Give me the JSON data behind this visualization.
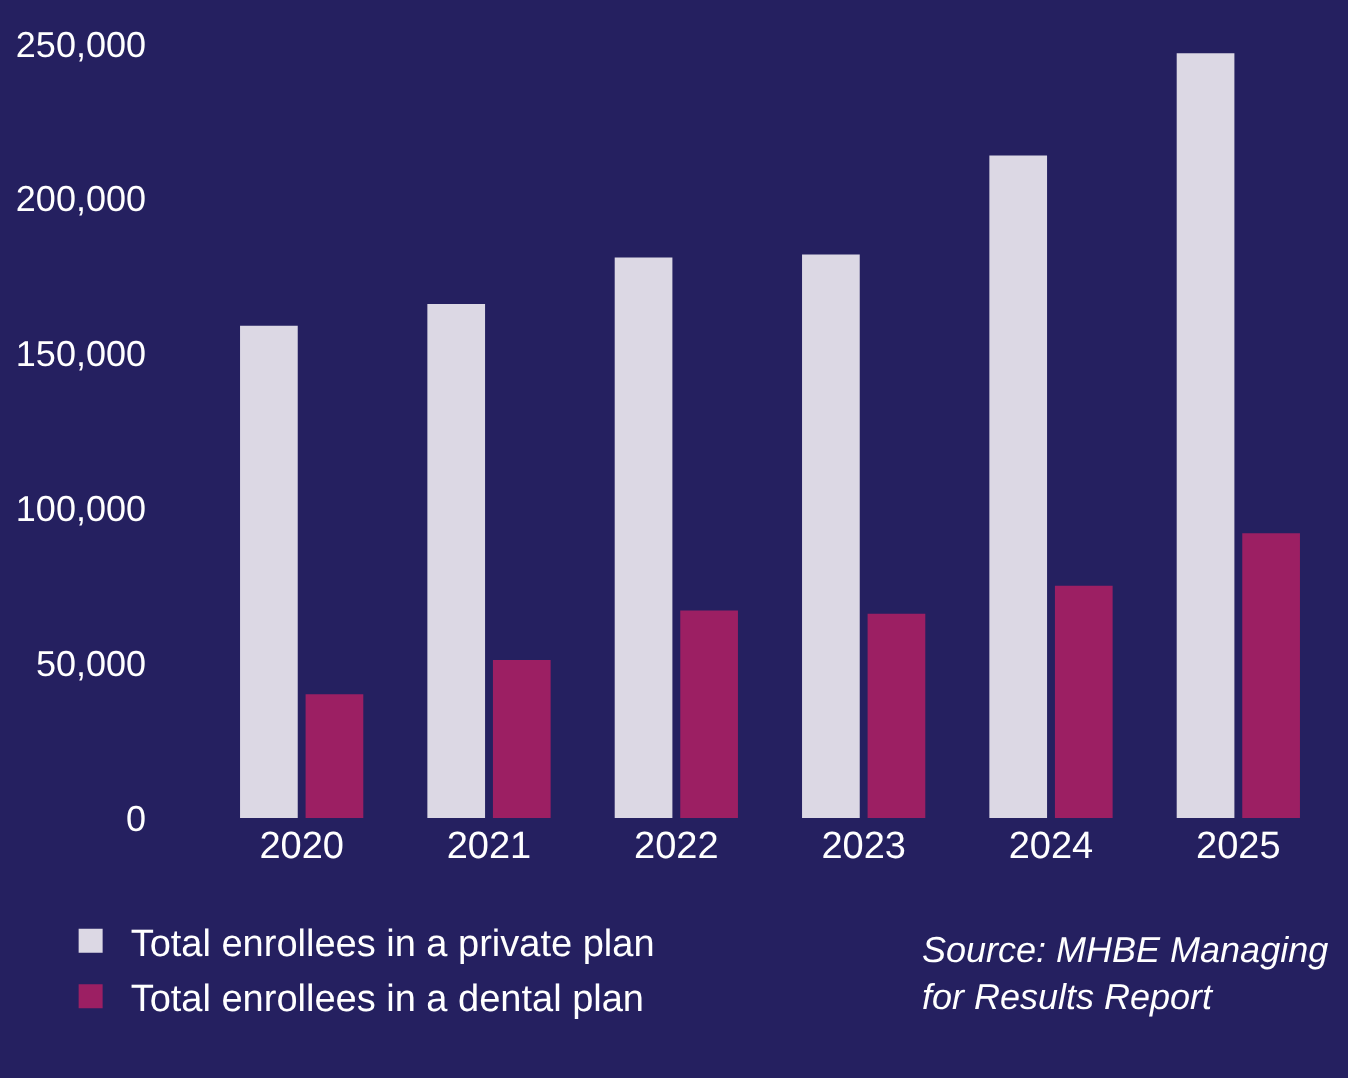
{
  "chart_data": {
    "type": "bar",
    "categories": [
      "2020",
      "2021",
      "2022",
      "2023",
      "2024",
      "2025"
    ],
    "series": [
      {
        "name": "Total enrollees in a private plan",
        "color": "#dcd8e4",
        "values": [
          159000,
          166000,
          181000,
          182000,
          214000,
          247000
        ]
      },
      {
        "name": "Total enrollees in a dental plan",
        "color": "#9c1f63",
        "values": [
          40000,
          51000,
          67000,
          66000,
          75000,
          92000
        ]
      }
    ],
    "ylim": [
      0,
      250000
    ],
    "yticks": [
      {
        "value": 0,
        "label": "0"
      },
      {
        "value": 50000,
        "label": "50,000"
      },
      {
        "value": 100000,
        "label": "100,000"
      },
      {
        "value": 150000,
        "label": "150,000"
      },
      {
        "value": 200000,
        "label": "200,000"
      },
      {
        "value": 250000,
        "label": "250,000"
      }
    ],
    "grid": false,
    "legend": "bottom left",
    "annotations": [
      "Source: MHBE Managing for Results Report"
    ]
  }
}
